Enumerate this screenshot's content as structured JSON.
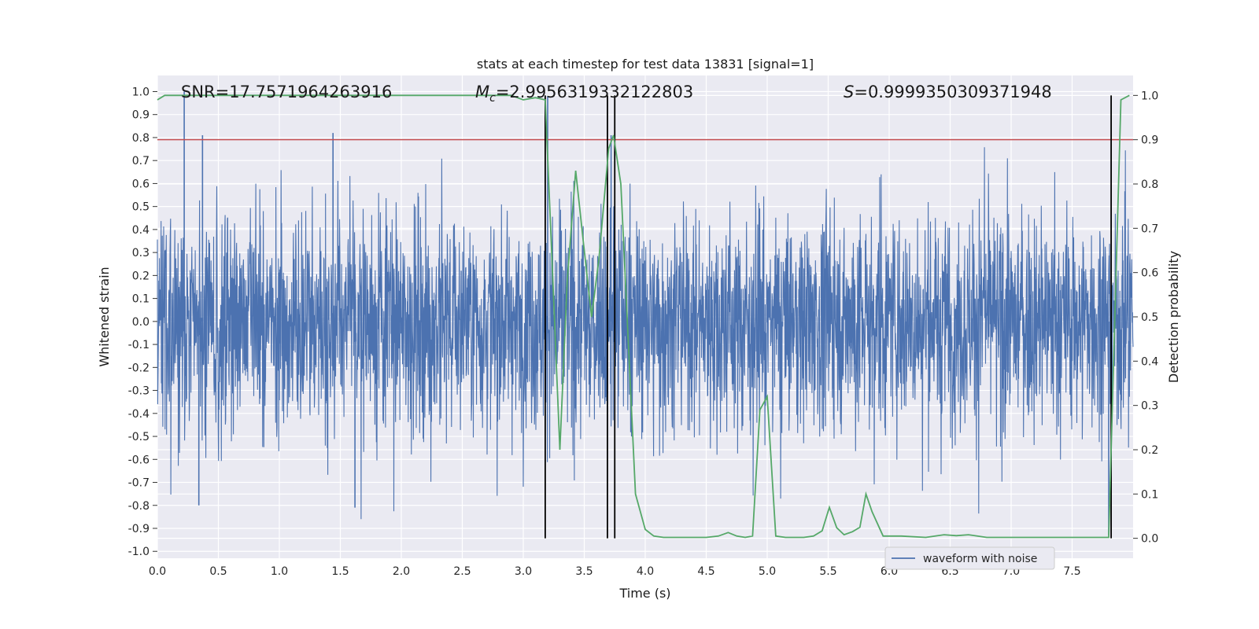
{
  "chart_data": {
    "type": "line",
    "title": "stats at each timestep for test data 13831 [signal=1]",
    "xlabel": "Time (s)",
    "ylabel": "Whitened strain",
    "y2label": "Detection probability",
    "xlim": [
      0.0,
      8.0
    ],
    "ylim": [
      -1.03,
      1.07
    ],
    "y2lim": [
      -0.045,
      1.045
    ],
    "x_ticks": [
      "0.0",
      "0.5",
      "1.0",
      "1.5",
      "2.0",
      "2.5",
      "3.0",
      "3.5",
      "4.0",
      "4.5",
      "5.0",
      "5.5",
      "6.0",
      "6.5",
      "7.0",
      "7.5"
    ],
    "y_ticks": [
      "-1.0",
      "-0.9",
      "-0.8",
      "-0.7",
      "-0.6",
      "-0.5",
      "-0.4",
      "-0.3",
      "-0.2",
      "-0.1",
      "0.0",
      "0.1",
      "0.2",
      "0.3",
      "0.4",
      "0.5",
      "0.6",
      "0.7",
      "0.8",
      "0.9",
      "1.0"
    ],
    "y2_ticks": [
      "0.0",
      "0.1",
      "0.2",
      "0.3",
      "0.4",
      "0.5",
      "0.6",
      "0.7",
      "0.8",
      "0.9",
      "1.0"
    ],
    "annotations": {
      "snr": "SNR=17.7571964263916",
      "mc_symbol": "M",
      "mc_sub": "c",
      "mc_value": "=2.9956319332122803",
      "s_symbol": "S",
      "s_value": "=0.9999350309371948"
    },
    "legend": {
      "label": "waveform with noise",
      "location": "lower-right"
    },
    "waveform": {
      "name": "waveform with noise",
      "color": "#4c72b0",
      "noise_envelope": 0.45,
      "notable_peaks": [
        {
          "x": 0.22,
          "y": 1.0
        },
        {
          "x": 0.37,
          "y": 0.81
        },
        {
          "x": 1.44,
          "y": 0.82
        },
        {
          "x": 0.34,
          "y": -0.8
        },
        {
          "x": 1.62,
          "y": -0.81
        },
        {
          "x": 3.2,
          "y": 0.98
        },
        {
          "x": 3.72,
          "y": 0.81
        },
        {
          "x": 7.8,
          "y": -0.93
        }
      ]
    },
    "threshold": {
      "axis": "right",
      "value": 0.9,
      "color": "#c44e52"
    },
    "vertical_lines": {
      "x": [
        3.18,
        3.69,
        3.75,
        7.82
      ],
      "from_y2": 0.0,
      "to_y2": 1.0,
      "color": "#000000"
    },
    "probability": {
      "name": "Detection probability",
      "color": "#55a868",
      "x": [
        0.0,
        0.06,
        0.1,
        0.5,
        1.0,
        1.5,
        2.0,
        2.5,
        2.9,
        3.0,
        3.1,
        3.18,
        3.24,
        3.3,
        3.36,
        3.43,
        3.5,
        3.56,
        3.62,
        3.7,
        3.74,
        3.8,
        3.86,
        3.92,
        4.0,
        4.07,
        4.15,
        4.3,
        4.5,
        4.6,
        4.68,
        4.75,
        4.82,
        4.88,
        4.94,
        5.0,
        5.07,
        5.15,
        5.3,
        5.38,
        5.45,
        5.51,
        5.57,
        5.63,
        5.7,
        5.76,
        5.81,
        5.86,
        5.95,
        6.1,
        6.3,
        6.45,
        6.55,
        6.65,
        6.8,
        7.0,
        7.5,
        7.8,
        7.85,
        7.9,
        7.97
      ],
      "values": [
        0.99,
        1.0,
        1.0,
        1.0,
        1.0,
        1.0,
        1.0,
        1.0,
        1.0,
        0.99,
        0.995,
        0.99,
        0.6,
        0.2,
        0.58,
        0.83,
        0.65,
        0.5,
        0.63,
        0.88,
        0.91,
        0.8,
        0.45,
        0.1,
        0.02,
        0.005,
        0.002,
        0.002,
        0.002,
        0.005,
        0.013,
        0.005,
        0.002,
        0.005,
        0.29,
        0.32,
        0.005,
        0.002,
        0.002,
        0.005,
        0.017,
        0.07,
        0.024,
        0.008,
        0.015,
        0.025,
        0.1,
        0.06,
        0.005,
        0.005,
        0.002,
        0.008,
        0.006,
        0.008,
        0.002,
        0.002,
        0.002,
        0.002,
        0.5,
        0.99,
        1.0
      ]
    }
  }
}
